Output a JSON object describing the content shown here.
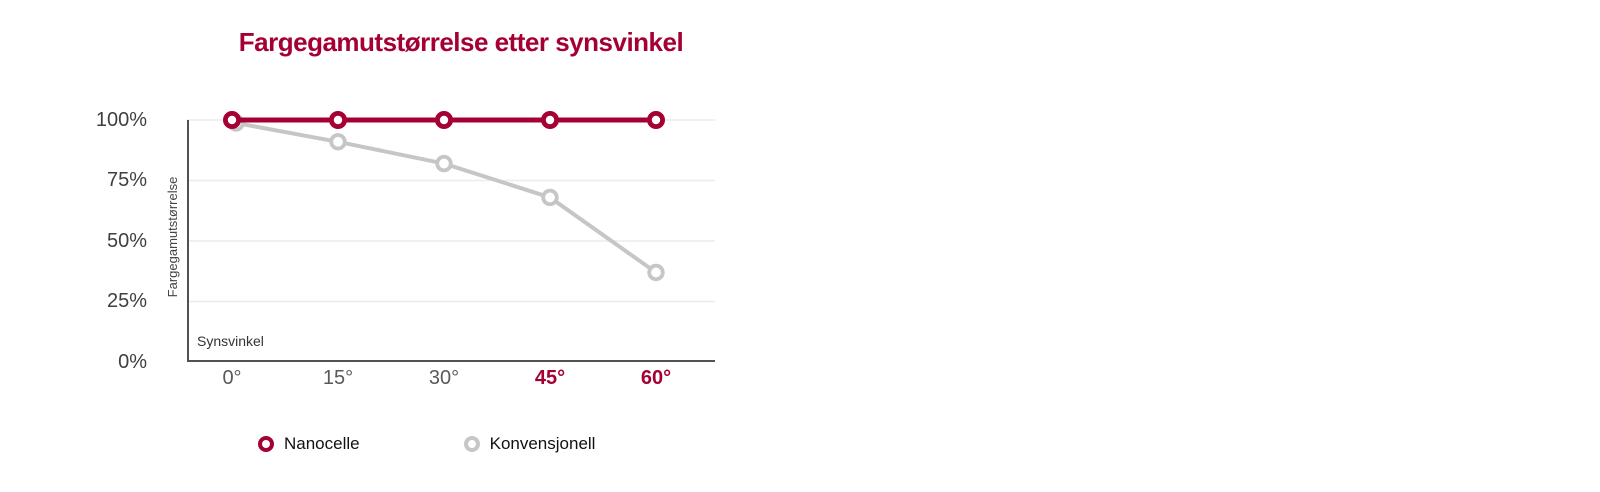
{
  "title": {
    "text": "Fargegamutstørrelse etter synsvinkel",
    "color": "#a50034"
  },
  "chart_data": {
    "type": "line",
    "x": [
      "0°",
      "15°",
      "30°",
      "45°",
      "60°"
    ],
    "xticks": [
      {
        "label": "0°",
        "highlight": false
      },
      {
        "label": "15°",
        "highlight": false
      },
      {
        "label": "30°",
        "highlight": false
      },
      {
        "label": "45°",
        "highlight": true
      },
      {
        "label": "60°",
        "highlight": true
      }
    ],
    "yticks": [
      "100%",
      "75%",
      "50%",
      "25%",
      "0%"
    ],
    "ytick_values": [
      100,
      75,
      50,
      25,
      0
    ],
    "ylim": [
      0,
      100
    ],
    "xlabel": "Synsvinkel",
    "ylabel": "Fargegamutstørrelse",
    "series": [
      {
        "name": "Nanocelle",
        "values": [
          100,
          100,
          100,
          100,
          100
        ],
        "color": "#a50034"
      },
      {
        "name": "Konvensjonell",
        "values": [
          100,
          91,
          82,
          68,
          37
        ],
        "color": "#c6c6c6"
      }
    ],
    "legend_position": "bottom",
    "grid": "horizontal"
  },
  "colors": {
    "accent_red": "#a50034",
    "series_gray": "#c6c6c6",
    "axis": "#515155",
    "grid": "#ececec",
    "ytick_text": "#3f3f3f",
    "xtick_text": "#595959",
    "axis_title_text": "#333333",
    "legend_text": "#111111",
    "background": "#ffffff"
  }
}
